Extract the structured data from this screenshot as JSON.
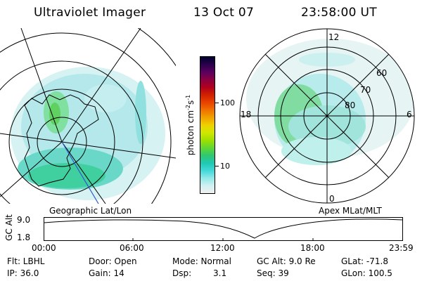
{
  "header": {
    "title": "Ultraviolet Imager",
    "date": "13 Oct 07",
    "time": "23:58:00 UT"
  },
  "left_map": {
    "label": "Geographic Lat/Lon"
  },
  "right_map": {
    "label": "Apex MLat/MLT",
    "mlt_labels": [
      "12",
      "18",
      "6",
      "0"
    ],
    "lat_labels": [
      "60",
      "70",
      "80"
    ]
  },
  "colorbar": {
    "unit_label": "photon cm",
    "unit_exp1": "-2",
    "unit_mid": "s",
    "unit_exp2": "-1",
    "tick_labels": [
      "100",
      "10"
    ],
    "colors": [
      "#000030",
      "#2a004a",
      "#5a0060",
      "#8a0040",
      "#b00020",
      "#d02000",
      "#e84000",
      "#f07000",
      "#f0a000",
      "#f0d000",
      "#d0e800",
      "#a0e000",
      "#60d830",
      "#30c870",
      "#20c8b0",
      "#40d8d8",
      "#90e8e8",
      "#d0f0f0",
      "#f0f0f0"
    ]
  },
  "altitude_plot": {
    "ylabel": "GC Alt",
    "y_ticks": [
      "9.0",
      "1.8"
    ],
    "x_ticks": [
      "00:00",
      "06:00",
      "12:00",
      "18:00",
      "23:59"
    ]
  },
  "status": {
    "flt": "Flt: LBHL",
    "door": "Door: Open",
    "mode": "Mode: Normal",
    "gc_alt": "GC Alt: 9.0 Re",
    "glat": "GLat: -71.8",
    "ip": "IP: 36.0",
    "gain": "Gain: 14",
    "dsp_label": "Dsp:",
    "dsp_value": "3.1",
    "seq": "Seq: 39",
    "glon": "GLon: 100.5"
  }
}
